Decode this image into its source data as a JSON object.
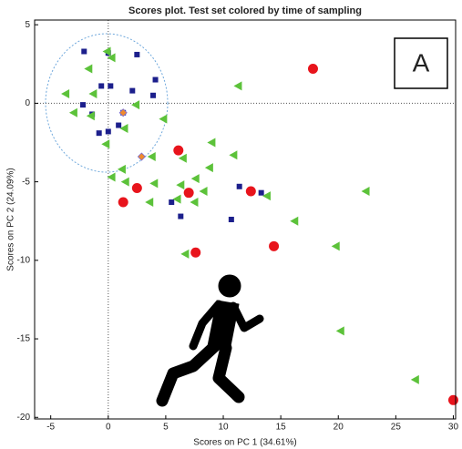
{
  "chart_data": {
    "type": "scatter",
    "title": "Scores plot. Test set colored by time of sampling",
    "x_label": "Scores on PC 1 (34.61%)",
    "y_label": "Scores on PC 2 (24.09%)",
    "annotation": "A",
    "xlim": [
      -6.4,
      30.2
    ],
    "ylim": [
      -20.1,
      5.3
    ],
    "xticks": [
      -5,
      0,
      5,
      10,
      15,
      20,
      25,
      30
    ],
    "yticks": [
      5,
      0,
      -5,
      -10,
      -15,
      -20
    ],
    "series": [
      {
        "color": "#e8141c",
        "marker": "circle",
        "x": [
          17.8,
          6.1,
          2.5,
          1.3,
          7.0,
          12.4,
          14.4,
          7.6,
          30.0
        ],
        "y": [
          2.2,
          -3.0,
          -5.4,
          -6.3,
          -5.7,
          -5.6,
          -9.1,
          -9.5,
          -18.9
        ]
      },
      {
        "color": "#1c1f8c",
        "marker": "square",
        "x": [
          -2.1,
          0.0,
          2.5,
          4.1,
          -0.6,
          0.2,
          2.1,
          3.9,
          -2.2,
          -1.4,
          1.3,
          0.9,
          -0.8,
          0.0,
          5.5,
          6.3,
          11.4,
          13.3,
          10.7
        ],
        "y": [
          3.3,
          3.2,
          3.1,
          1.5,
          1.1,
          1.1,
          0.8,
          0.5,
          -0.1,
          -0.7,
          -0.6,
          -1.4,
          -1.9,
          -1.8,
          -6.3,
          -7.2,
          -5.3,
          -5.7,
          -7.4
        ]
      },
      {
        "color": "#5cc23a",
        "marker": "triangle-left",
        "x": [
          -0.1,
          0.3,
          -1.7,
          -3.7,
          -1.3,
          -3.0,
          -1.5,
          2.4,
          4.8,
          1.4,
          -0.2,
          9.0,
          10.9,
          6.5,
          3.8,
          1.2,
          0.3,
          1.5,
          4.0,
          6.3,
          7.6,
          11.3,
          8.3,
          6.0,
          3.6,
          7.5,
          13.8,
          16.2,
          19.8,
          22.4,
          20.2,
          26.7,
          6.7,
          8.8
        ],
        "y": [
          3.3,
          2.9,
          2.2,
          0.6,
          0.6,
          -0.6,
          -0.8,
          -0.1,
          -1.0,
          -1.6,
          -2.6,
          -2.5,
          -3.3,
          -3.5,
          -3.4,
          -4.2,
          -4.7,
          -5.0,
          -5.1,
          -5.2,
          -4.8,
          1.1,
          -5.6,
          -6.1,
          -6.3,
          -6.3,
          -5.9,
          -7.5,
          -9.1,
          -5.6,
          -14.5,
          -17.6,
          -9.6,
          -4.1
        ]
      },
      {
        "color": "#f08a2c",
        "marker": "diamond",
        "x": [
          1.3,
          2.9
        ],
        "y": [
          -0.6,
          -3.4
        ]
      }
    ]
  }
}
